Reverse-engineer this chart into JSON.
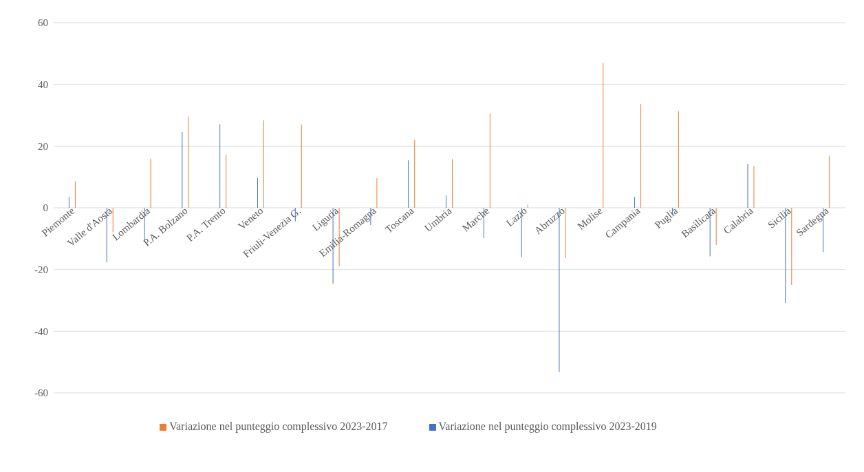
{
  "chart_data": {
    "type": "bar",
    "categories": [
      "Piemonte",
      "Valle d'Aosta",
      "Lombardia",
      "P.A. Bolzano",
      "P.A. Trento",
      "Veneto",
      "Friuli-Venezia G.",
      "Liguria",
      "Emilia-Romagna",
      "Toscana",
      "Umbria",
      "Marche",
      "Lazio",
      "Abruzzo",
      "Molise",
      "Campania",
      "Puglia",
      "Basilicata",
      "Calabria",
      "Sicilia",
      "Sardegna"
    ],
    "series": [
      {
        "name": "Variazione nel punteggio complessivo 2023-2019",
        "color": "#4472c4",
        "values": [
          3.5,
          -17.7,
          -11,
          24.6,
          27.1,
          9.6,
          -4.4,
          -24.6,
          -5.6,
          15.4,
          4,
          -9.8,
          -16,
          -53.2,
          0,
          3.5,
          -2.3,
          -15.7,
          14.2,
          -30.9,
          -14.4
        ]
      },
      {
        "name": "Variazione nel punteggio complessivo 2023-2017",
        "color": "#ed7d31",
        "values": [
          8.6,
          -7.9,
          15.9,
          29.6,
          17.3,
          28.4,
          26.9,
          -19,
          9.6,
          22.1,
          15.7,
          30.5,
          1,
          -16.3,
          47,
          33.6,
          31.3,
          -12.1,
          13.6,
          -25,
          16.9
        ]
      }
    ],
    "ylim": [
      -60,
      60
    ],
    "yticks": [
      -60,
      -40,
      -20,
      0,
      20,
      40,
      60
    ],
    "grid": "y",
    "legend": "bottom"
  }
}
